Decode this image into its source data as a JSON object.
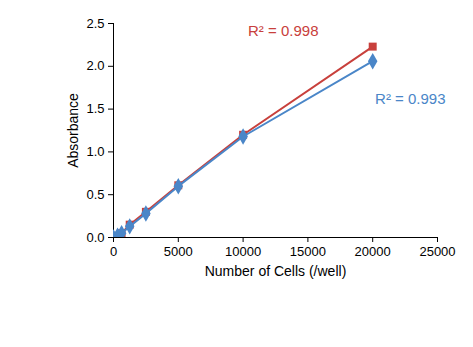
{
  "chart_data": {
    "type": "scatter",
    "x_label": "Number of Cells (/well)",
    "y_label": "Absorbance",
    "x": [
      0,
      312.5,
      625,
      1250,
      2500,
      5000,
      10000,
      20000
    ],
    "series": [
      {
        "color": "#c8403c",
        "marker": "square",
        "line_style": "solid",
        "values": [
          0,
          0.02,
          0.05,
          0.15,
          0.3,
          0.61,
          1.2,
          2.23
        ],
        "annotation": {
          "text": "R² = 0.998",
          "x": 13100,
          "y": 2.41
        }
      },
      {
        "color": "#4a86c8",
        "marker": "diamond",
        "line_style": "solid",
        "values": [
          0,
          0.02,
          0.05,
          0.13,
          0.28,
          0.6,
          1.18,
          2.06
        ],
        "annotation": {
          "text": "R² = 0.993",
          "x": 22900,
          "y": 1.62
        }
      }
    ],
    "xlim": [
      0,
      25000
    ],
    "xticks": [
      0,
      5000,
      10000,
      15000,
      20000,
      25000
    ],
    "ylim": [
      0,
      2.5
    ],
    "yticks": [
      {
        "value": 0,
        "label": "0.0"
      },
      {
        "value": 0.5,
        "label": "0.5"
      },
      {
        "value": 1,
        "label": "1.0"
      },
      {
        "value": 1.5,
        "label": "1.5"
      },
      {
        "value": 2,
        "label": "2.0"
      },
      {
        "value": 2.5,
        "label": "2.5"
      }
    ],
    "grid": false
  }
}
